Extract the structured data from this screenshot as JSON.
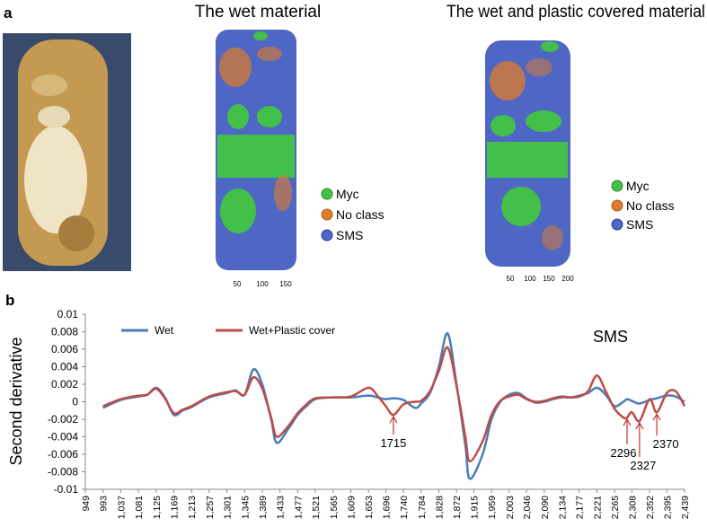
{
  "panel_a": {
    "label": "a",
    "maps": [
      {
        "title": "The wet material",
        "legend": [
          "Myc",
          "No class",
          "SMS"
        ],
        "scale_ticks": [
          50,
          100,
          150
        ]
      },
      {
        "title": "The wet and plastic covered material",
        "legend": [
          "Myc",
          "No class",
          "SMS"
        ],
        "scale_ticks": [
          50,
          100,
          150,
          200
        ]
      }
    ]
  },
  "panel_b": {
    "label": "b"
  },
  "chart_data": {
    "type": "line",
    "ylabel": "Second derivative",
    "inset_label": "SMS",
    "legend": "upper left",
    "x": [
      993,
      1037,
      1081,
      1103,
      1125,
      1147,
      1169,
      1191,
      1213,
      1257,
      1301,
      1323,
      1345,
      1367,
      1389,
      1411,
      1425,
      1455,
      1477,
      1499,
      1521,
      1565,
      1609,
      1653,
      1675,
      1696,
      1715,
      1740,
      1769,
      1784,
      1806,
      1828,
      1850,
      1872,
      1894,
      1905,
      1937,
      1959,
      1981,
      2003,
      2025,
      2046,
      2068,
      2090,
      2112,
      2134,
      2156,
      2177,
      2199,
      2221,
      2243,
      2265,
      2287,
      2296,
      2308,
      2327,
      2352,
      2370,
      2395,
      2417,
      2439
    ],
    "series": [
      {
        "name": "Wet",
        "color": "#4a7ebb",
        "values": [
          -0.0007,
          0.0002,
          0.0006,
          0.0008,
          0.0016,
          0.0005,
          -0.0015,
          -0.001,
          -0.0006,
          0.0005,
          0.001,
          0.0013,
          0.0008,
          0.0037,
          0.002,
          -0.002,
          -0.0047,
          -0.003,
          -0.0015,
          -0.0005,
          0.0003,
          0.0005,
          0.0005,
          0.0007,
          0.0005,
          0.0003,
          0.0004,
          0.0002,
          -0.0007,
          -0.0002,
          0.001,
          0.004,
          0.0078,
          0.002,
          -0.005,
          -0.0088,
          -0.006,
          -0.002,
          0,
          0.0008,
          0.001,
          0.0004,
          -0.0001,
          0,
          0.0003,
          0.0005,
          0.0005,
          0.0007,
          0.001,
          0.0016,
          0.0008,
          -0.0005,
          0,
          0.0003,
          0.0001,
          -0.0002,
          0.0002,
          0.0004,
          0.0007,
          0.0006,
          0
        ]
      },
      {
        "name": "Wet+Plastic cover",
        "color": "#be4b48",
        "values": [
          -0.0005,
          0.0003,
          0.0007,
          0.0008,
          0.0015,
          0.0004,
          -0.0013,
          -0.0009,
          -0.0005,
          0.0006,
          0.0011,
          0.0012,
          0.0008,
          0.0028,
          0.0015,
          -0.0018,
          -0.004,
          -0.0027,
          -0.0013,
          -0.0003,
          0.0004,
          0.0005,
          0.0006,
          0.0016,
          0.0007,
          -0.0005,
          -0.0015,
          -0.0003,
          0,
          0.0001,
          0.0012,
          0.0035,
          0.0062,
          0.0018,
          -0.004,
          -0.0068,
          -0.0045,
          -0.0015,
          0.0001,
          0.0006,
          0.0008,
          0.0003,
          0,
          0.0001,
          0.0004,
          0.0006,
          0.0005,
          0.0006,
          0.0012,
          0.003,
          0.0012,
          -0.0008,
          -0.0018,
          -0.0018,
          -0.0012,
          -0.0022,
          0.0003,
          -0.0012,
          0.001,
          0.0012,
          -0.0005
        ]
      }
    ],
    "annotations": [
      {
        "x": 1715
      },
      {
        "x": 2296
      },
      {
        "x": 2327
      },
      {
        "x": 2370
      }
    ],
    "xlim": [
      949,
      2439
    ],
    "xticks": [
      949,
      993,
      {
        "value": 1037,
        "label": "1,037"
      },
      {
        "value": 1081,
        "label": "1,081"
      },
      {
        "value": 1125,
        "label": "1,125"
      },
      {
        "value": 1169,
        "label": "1,169"
      },
      {
        "value": 1213,
        "label": "1,213"
      },
      {
        "value": 1257,
        "label": "1,257"
      },
      {
        "value": 1301,
        "label": "1,301"
      },
      {
        "value": 1345,
        "label": "1,345"
      },
      {
        "value": 1389,
        "label": "1,389"
      },
      {
        "value": 1433,
        "label": "1,433"
      },
      {
        "value": 1477,
        "label": "1,477"
      },
      {
        "value": 1521,
        "label": "1,521"
      },
      {
        "value": 1565,
        "label": "1,565"
      },
      {
        "value": 1609,
        "label": "1,609"
      },
      {
        "value": 1653,
        "label": "1,653"
      },
      {
        "value": 1696,
        "label": "1,696"
      },
      {
        "value": 1740,
        "label": "1,740"
      },
      {
        "value": 1784,
        "label": "1,784"
      },
      {
        "value": 1828,
        "label": "1,828"
      },
      {
        "value": 1872,
        "label": "1,872"
      },
      {
        "value": 1915,
        "label": "1,915"
      },
      {
        "value": 1959,
        "label": "1,959"
      },
      {
        "value": 2003,
        "label": "2,003"
      },
      {
        "value": 2046,
        "label": "2,046"
      },
      {
        "value": 2090,
        "label": "2,090"
      },
      {
        "value": 2134,
        "label": "2,134"
      },
      {
        "value": 2177,
        "label": "2,177"
      },
      {
        "value": 2221,
        "label": "2,221"
      },
      {
        "value": 2265,
        "label": "2,265"
      },
      {
        "value": 2308,
        "label": "2,308"
      },
      {
        "value": 2352,
        "label": "2,352"
      },
      {
        "value": 2395,
        "label": "2,395"
      },
      {
        "value": 2439,
        "label": "2,439"
      }
    ],
    "ylim": [
      -0.01,
      0.01
    ],
    "yticks": [
      -0.01,
      -0.008,
      -0.006,
      -0.004,
      -0.002,
      0,
      0.002,
      0.004,
      0.006,
      0.008,
      0.01
    ],
    "grid": false
  }
}
